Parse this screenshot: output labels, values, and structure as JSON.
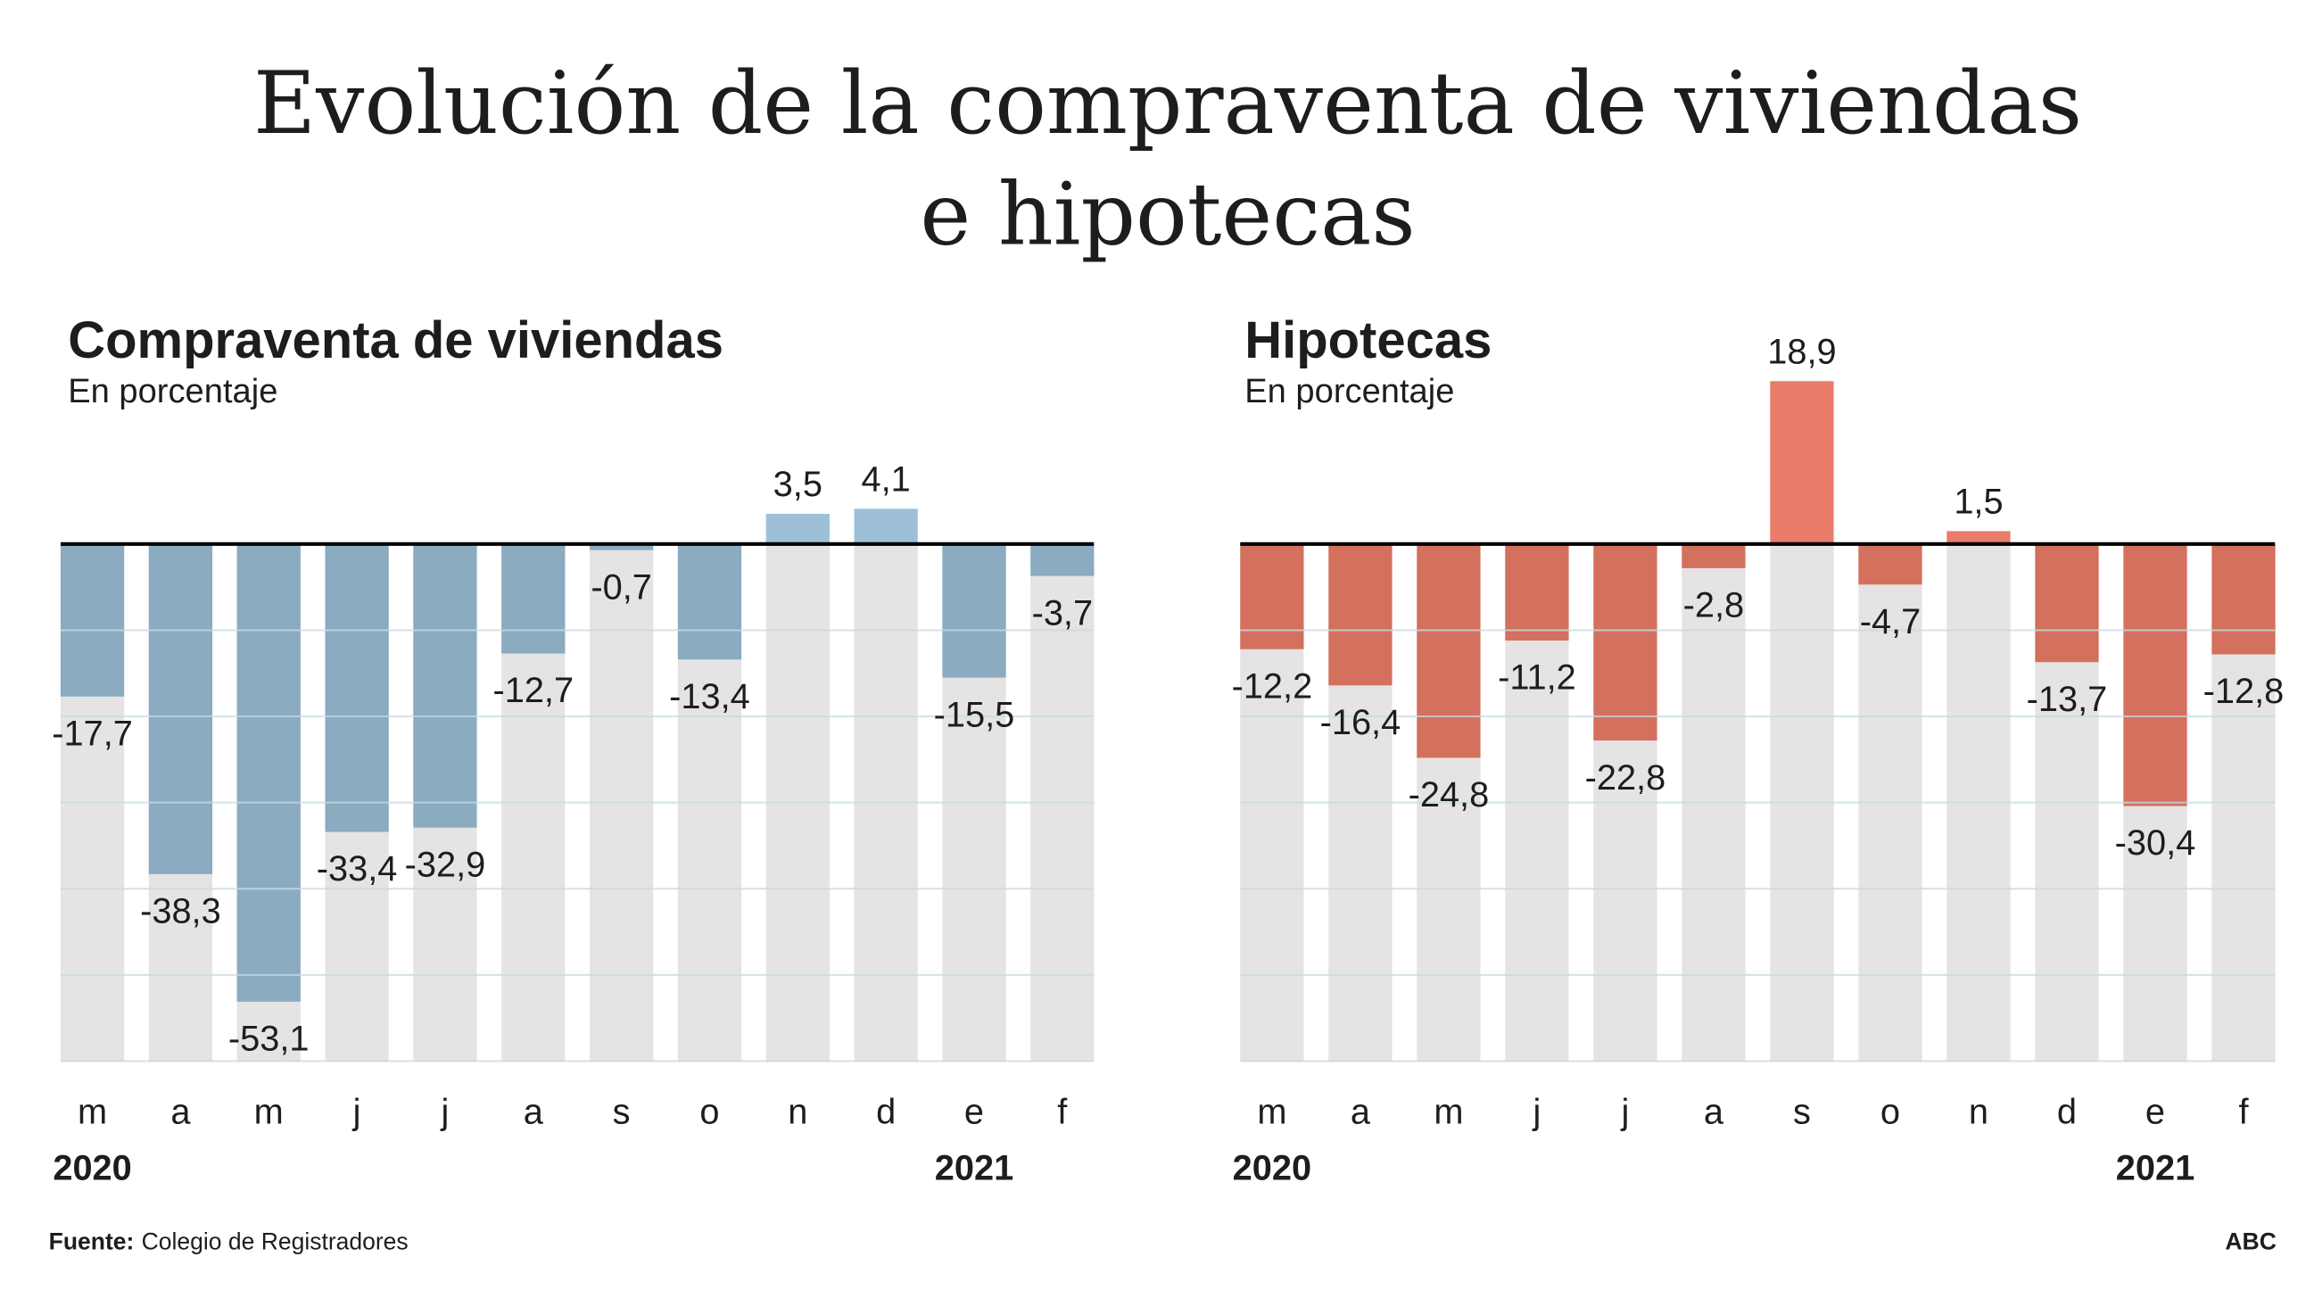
{
  "title_line1": "Evolución de la compraventa de viviendas",
  "title_line2": "e hipotecas",
  "footer": {
    "source_label": "Fuente:",
    "source": "Colegio de Registradores",
    "brand": "ABC"
  },
  "chart_data": [
    {
      "type": "bar",
      "title": "Compraventa de viviendas",
      "subtitle": "En porcentaje",
      "categories": [
        "m",
        "a",
        "m",
        "j",
        "j",
        "a",
        "s",
        "o",
        "n",
        "d",
        "e",
        "f"
      ],
      "year_labels": [
        {
          "index": 0,
          "label": "2020"
        },
        {
          "index": 10,
          "label": "2021"
        }
      ],
      "values": [
        -17.7,
        -38.3,
        -53.1,
        -33.4,
        -32.9,
        -12.7,
        -0.7,
        -13.4,
        3.5,
        4.1,
        -15.5,
        -3.7
      ],
      "data_labels": [
        "-17,7",
        "-38,3",
        "-53,1",
        "-33,4",
        "-32,9",
        "-12,7",
        "-0,7",
        "-13,4",
        "3,5",
        "4,1",
        "-15,5",
        "-3,7"
      ],
      "ylim": [
        -60,
        20
      ],
      "grid": true,
      "colors": {
        "negative": "#8aabc0",
        "positive": "#9dc0d8",
        "background": "#e5e3e3",
        "grid": "#c8dbe4"
      }
    },
    {
      "type": "bar",
      "title": "Hipotecas",
      "subtitle": "En porcentaje",
      "categories": [
        "m",
        "a",
        "m",
        "j",
        "j",
        "a",
        "s",
        "o",
        "n",
        "d",
        "e",
        "f"
      ],
      "year_labels": [
        {
          "index": 0,
          "label": "2020"
        },
        {
          "index": 10,
          "label": "2021"
        }
      ],
      "values": [
        -12.2,
        -16.4,
        -24.8,
        -11.2,
        -22.8,
        -2.8,
        18.9,
        -4.7,
        1.5,
        -13.7,
        -30.4,
        -12.8
      ],
      "data_labels": [
        "-12,2",
        "-16,4",
        "-24,8",
        "-11,2",
        "-22,8",
        "-2,8",
        "18,9",
        "-4,7",
        "1,5",
        "-13,7",
        "-30,4",
        "-12,8"
      ],
      "ylim": [
        -60,
        20
      ],
      "grid": true,
      "colors": {
        "negative": "#d4705e",
        "positive": "#e87c69",
        "background": "#e5e3e3",
        "grid": "#c8dbe4"
      }
    }
  ]
}
